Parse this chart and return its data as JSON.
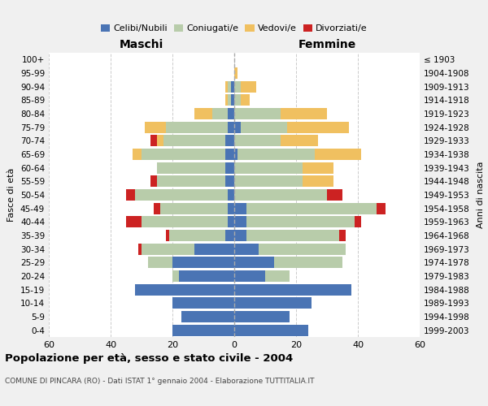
{
  "age_groups": [
    "0-4",
    "5-9",
    "10-14",
    "15-19",
    "20-24",
    "25-29",
    "30-34",
    "35-39",
    "40-44",
    "45-49",
    "50-54",
    "55-59",
    "60-64",
    "65-69",
    "70-74",
    "75-79",
    "80-84",
    "85-89",
    "90-94",
    "95-99",
    "100+"
  ],
  "birth_years": [
    "1999-2003",
    "1994-1998",
    "1989-1993",
    "1984-1988",
    "1979-1983",
    "1974-1978",
    "1969-1973",
    "1964-1968",
    "1959-1963",
    "1954-1958",
    "1949-1953",
    "1944-1948",
    "1939-1943",
    "1934-1938",
    "1929-1933",
    "1924-1928",
    "1919-1923",
    "1914-1918",
    "1909-1913",
    "1904-1908",
    "≤ 1903"
  ],
  "colors": {
    "celibi": "#4a74b4",
    "coniugati": "#b8ccaa",
    "vedovi": "#f0c060",
    "divorziati": "#cc2222"
  },
  "maschi": {
    "celibi": [
      20,
      17,
      20,
      32,
      18,
      20,
      13,
      3,
      2,
      2,
      2,
      3,
      3,
      3,
      3,
      2,
      2,
      1,
      1,
      0,
      0
    ],
    "coniugati": [
      0,
      0,
      0,
      0,
      2,
      8,
      17,
      18,
      28,
      22,
      30,
      22,
      22,
      27,
      20,
      20,
      5,
      1,
      1,
      0,
      0
    ],
    "vedovi": [
      0,
      0,
      0,
      0,
      0,
      0,
      0,
      0,
      0,
      0,
      0,
      0,
      0,
      3,
      2,
      7,
      6,
      1,
      1,
      0,
      0
    ],
    "divorziati": [
      0,
      0,
      0,
      0,
      0,
      0,
      1,
      1,
      5,
      2,
      3,
      2,
      0,
      0,
      2,
      0,
      0,
      0,
      0,
      0,
      0
    ]
  },
  "femmine": {
    "celibi": [
      24,
      18,
      25,
      38,
      10,
      13,
      8,
      4,
      4,
      4,
      0,
      0,
      0,
      1,
      0,
      2,
      0,
      0,
      0,
      0,
      0
    ],
    "coniugati": [
      0,
      0,
      0,
      0,
      8,
      22,
      28,
      30,
      35,
      42,
      30,
      22,
      22,
      25,
      15,
      15,
      15,
      2,
      2,
      0,
      0
    ],
    "vedovi": [
      0,
      0,
      0,
      0,
      0,
      0,
      0,
      0,
      0,
      0,
      0,
      10,
      10,
      15,
      12,
      20,
      15,
      3,
      5,
      1,
      0
    ],
    "divorziati": [
      0,
      0,
      0,
      0,
      0,
      0,
      0,
      2,
      2,
      3,
      5,
      0,
      0,
      0,
      0,
      0,
      0,
      0,
      0,
      0,
      0
    ]
  },
  "title": "Popolazione per età, sesso e stato civile - 2004",
  "subtitle": "COMUNE DI PINCARA (RO) - Dati ISTAT 1° gennaio 2004 - Elaborazione TUTTITALIA.IT",
  "xlabel_left": "Maschi",
  "xlabel_right": "Femmine",
  "ylabel_left": "Fasce di età",
  "ylabel_right": "Anni di nascita",
  "xlim": 60,
  "bg_color": "#f0f0f0",
  "plot_bg_color": "#ffffff",
  "grid_color": "#cccccc",
  "legend_labels": [
    "Celibi/Nubili",
    "Coniugati/e",
    "Vedovi/e",
    "Divorziati/e"
  ]
}
